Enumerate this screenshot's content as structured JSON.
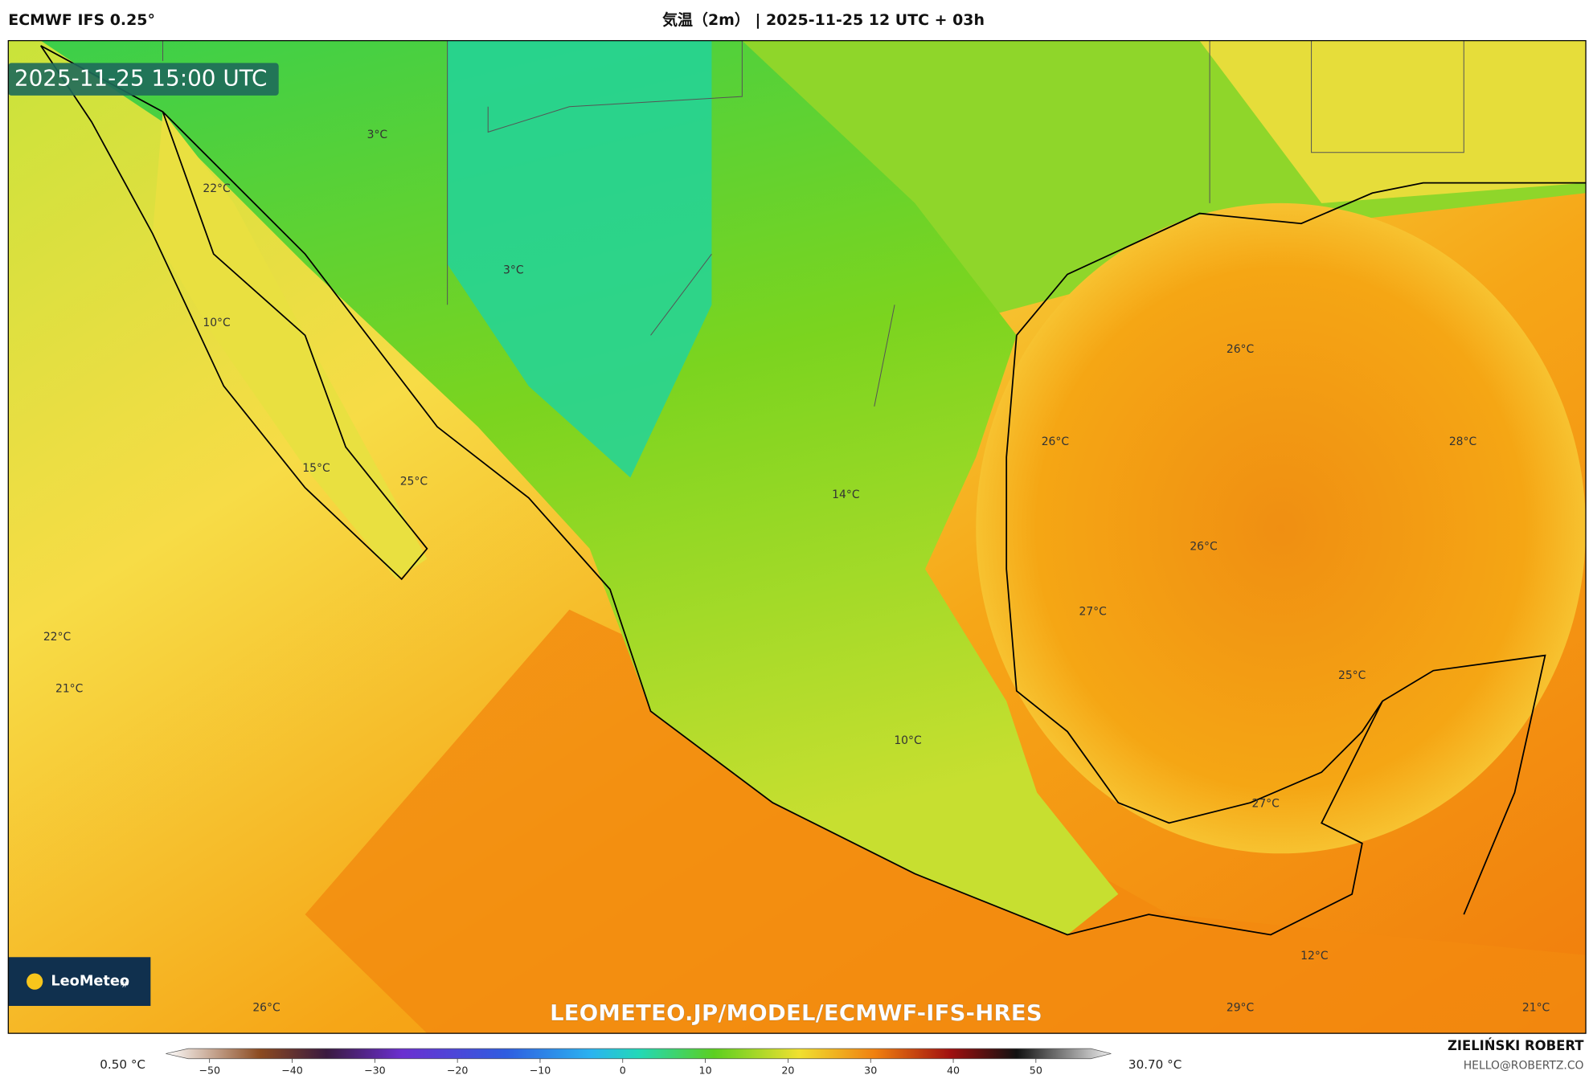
{
  "header": {
    "model": "ECMWF IFS 0.25°",
    "title": "気温（2m） | 2025-11-25 12 UTC + 03h"
  },
  "map": {
    "timestamp": "2025-11-25 15:00 UTC",
    "labels": [
      "3°C",
      "22°C",
      "3°C",
      "10°C",
      "26°C",
      "26°C",
      "28°C",
      "15°C",
      "25°C",
      "14°C",
      "26°C",
      "27°C",
      "22°C",
      "21°C",
      "25°C",
      "10°C",
      "27°C",
      "12°C",
      "26°C",
      "29°C",
      "21°C"
    ],
    "logo": "LeoMeteo",
    "logo_suffix": ".jp",
    "watermark": "LEOMETEO.JP/MODEL/ECMWF-IFS-HRES"
  },
  "legend": {
    "min": "0.50 °C",
    "max": "30.70 °C",
    "ticks": [
      "−50",
      "−40",
      "−30",
      "−20",
      "−10",
      "0",
      "10",
      "20",
      "30",
      "40",
      "50"
    ]
  },
  "footer": {
    "author": "ZIELIŃSKI ROBERT",
    "email": "HELLO@ROBERTZ.CO"
  }
}
